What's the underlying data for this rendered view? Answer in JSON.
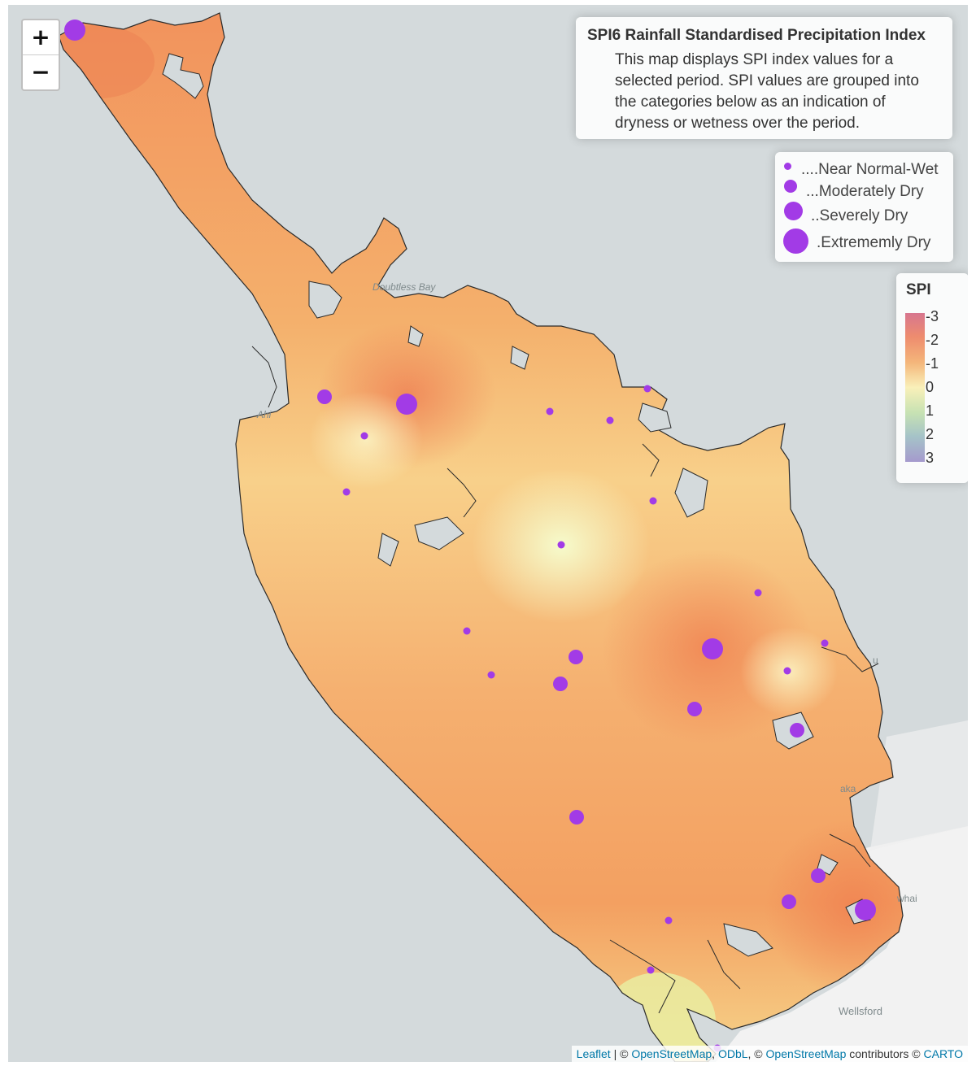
{
  "map": {
    "zoom_in_label": "+",
    "zoom_out_label": "−",
    "info_title": "SPI6 Rainfall Standardised Precipitation Index",
    "info_description": "This map displays SPI index values for a selected period. SPI values are grouped into the categories below as an indication of dryness or wetness over the period.",
    "size_legend": [
      {
        "label": "....Near Normal-Wet",
        "category": "near_normal_wet"
      },
      {
        "label": "...Moderately Dry",
        "category": "moderately_dry"
      },
      {
        "label": "..Severely Dry",
        "category": "severely_dry"
      },
      {
        "label": ".Extrememly Dry",
        "category": "extremely_dry"
      }
    ],
    "spi_legend": {
      "title": "SPI",
      "ticks": [
        "-3",
        "-2",
        "-1",
        "0",
        "1",
        "2",
        "3"
      ],
      "colors": [
        "#d7768f",
        "#ee8c6e",
        "#f4b57a",
        "#f9f0b9",
        "#c7e2b3",
        "#a5c3c8",
        "#a59acd"
      ]
    },
    "places": [
      "Doubtless Bay",
      "Ahi",
      "Wellsford",
      "whai",
      "u",
      "aka"
    ],
    "marker_color": "#a23be6",
    "attribution": {
      "leaflet": "Leaflet",
      "sep1": " | © ",
      "osm": "OpenStreetMap",
      "comma": ", ",
      "odbl": "ODbL",
      "sep2": ", © ",
      "osm2": "OpenStreetMap",
      "contributors": " contributors © ",
      "carto": "CARTO"
    }
  }
}
